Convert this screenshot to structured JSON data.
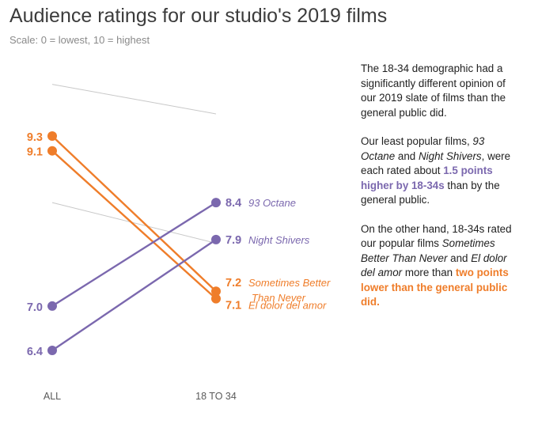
{
  "colors": {
    "orange": "#ef7d2a",
    "purple": "#7b68ae",
    "gray_line": "#c8c8c8",
    "axis_text": "#5a5a5a"
  },
  "chart_data": {
    "type": "slope",
    "title": "Audience ratings for our studio's 2019 films",
    "subtitle": "Scale: 0 = lowest, 10 = highest",
    "categories": [
      "ALL",
      "18 TO 34"
    ],
    "ylim": [
      0,
      10
    ],
    "gray_series": [
      {
        "values": [
          10.0,
          9.6
        ]
      },
      {
        "values": [
          8.4,
          7.85
        ]
      }
    ],
    "series": [
      {
        "name": "Sometimes Better Than Never",
        "label_lines": [
          "Sometimes Better",
          "Than Never"
        ],
        "values": [
          9.3,
          7.2
        ],
        "color": "orange",
        "right_value_label": "7.2",
        "left_value_label": "9.3"
      },
      {
        "name": "El dolor del amor",
        "label_lines": [
          "El dolor del amor"
        ],
        "values": [
          9.1,
          7.1
        ],
        "color": "orange",
        "right_value_label": "7.1",
        "left_value_label": "9.1"
      },
      {
        "name": "93 Octane",
        "label_lines": [
          "93 Octane"
        ],
        "values": [
          7.0,
          8.4
        ],
        "color": "purple",
        "right_value_label": "8.4",
        "left_value_label": "7.0"
      },
      {
        "name": "Night Shivers",
        "label_lines": [
          "Night Shivers"
        ],
        "values": [
          6.4,
          7.9
        ],
        "color": "purple",
        "right_value_label": "7.9",
        "left_value_label": "6.4"
      }
    ]
  },
  "panel": {
    "p1": "The 18-34 demographic had a significantly different opinion of our 2019 slate of films than the general public did.",
    "p2_a": "Our least popular films, ",
    "p2_film1": "93 Octane",
    "p2_b": " and ",
    "p2_film2": "Night Shivers",
    "p2_c": ", were each rated about ",
    "p2_highlight": "1.5 points higher by 18-34s",
    "p2_d": " than by the general public.",
    "p3_a": "On the other hand, 18-34s rated our popular films ",
    "p3_film1": "Sometimes Better Than Never",
    "p3_b": " and ",
    "p3_film2": "El dolor del amor",
    "p3_c": " more than ",
    "p3_highlight": "two points lower than the general public did."
  }
}
